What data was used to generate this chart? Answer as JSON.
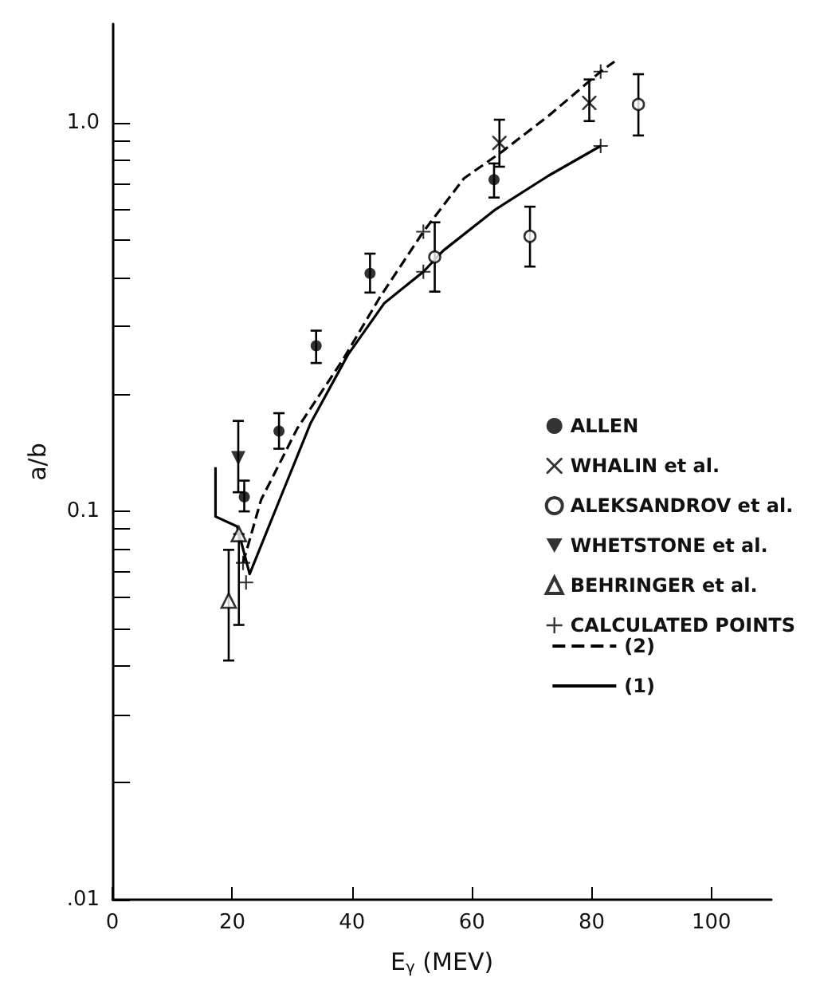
{
  "chart_data": {
    "type": "scatter",
    "xlabel": "E$_{γ}$ (MEV)",
    "ylabel": "a/b",
    "log": "y",
    "xlim": [
      0,
      110
    ],
    "ylim": [
      0.01,
      1.8
    ],
    "xticks": [
      0,
      20,
      40,
      60,
      80,
      100
    ],
    "yticks": [
      {
        "value": 0.01,
        "label": ".01"
      },
      {
        "value": 0.02,
        "label": null
      },
      {
        "value": 0.03,
        "label": null
      },
      {
        "value": 0.04,
        "label": null
      },
      {
        "value": 0.05,
        "label": null
      },
      {
        "value": 0.06,
        "label": null
      },
      {
        "value": 0.07,
        "label": null
      },
      {
        "value": 0.08,
        "label": null
      },
      {
        "value": 0.09,
        "label": null
      },
      {
        "value": 0.1,
        "label": "0.1"
      },
      {
        "value": 0.2,
        "label": null
      },
      {
        "value": 0.3,
        "label": null
      },
      {
        "value": 0.4,
        "label": null
      },
      {
        "value": 0.5,
        "label": null
      },
      {
        "value": 0.6,
        "label": null
      },
      {
        "value": 0.7,
        "label": null
      },
      {
        "value": 0.8,
        "label": null
      },
      {
        "value": 0.9,
        "label": null
      },
      {
        "value": 1,
        "label": "1.0"
      }
    ],
    "grid": false,
    "legend": "right",
    "series": [
      {
        "name": "ALLEN",
        "marker": "circle",
        "color": "#000000",
        "x": [
          22.0,
          27.8,
          34.0,
          43.0,
          63.7
        ],
        "values": [
          0.109,
          0.161,
          0.267,
          0.41,
          0.715
        ],
        "errors": [
          [
            0.1,
            0.12
          ],
          [
            0.145,
            0.179
          ],
          [
            0.241,
            0.292
          ],
          [
            0.366,
            0.461
          ],
          [
            0.643,
            0.787
          ]
        ]
      },
      {
        "name": "WHALIN et al.",
        "marker": "x",
        "color": "#000000",
        "x": [
          64.6,
          79.6
        ],
        "values": [
          0.889,
          1.127
        ],
        "errors": [
          [
            0.772,
            1.02
          ],
          [
            1.012,
            1.295
          ]
        ]
      },
      {
        "name": "ALEKSANDROV et al.",
        "marker": "circle-open",
        "color": "#000000",
        "x": [
          53.8,
          69.7,
          87.8
        ],
        "values": [
          0.452,
          0.511,
          1.117
        ],
        "errors": [
          [
            0.368,
            0.555
          ],
          [
            0.427,
            0.609
          ],
          [
            0.929,
            1.336
          ]
        ]
      },
      {
        "name": "WHETSTONE et al.",
        "marker": "triangle-down",
        "color": "#000000",
        "x": [
          21.0
        ],
        "values": [
          0.137
        ],
        "errors": [
          [
            0.112,
            0.171
          ]
        ]
      },
      {
        "name": "BEHRINGER et al.",
        "marker": "triangle-open",
        "color": "#000000",
        "x": [
          21.1,
          19.4
        ],
        "values": [
          0.0874,
          0.0589
        ],
        "errors": [
          [
            0.051,
            0.0874
          ],
          [
            0.0413,
            0.0796
          ]
        ]
      },
      {
        "name": "CALCULATED POINTS",
        "marker": "cross",
        "color": "#000000",
        "x": [
          21.8,
          22.3,
          51.9,
          51.9,
          81.5,
          81.5
        ],
        "values": [
          0.0737,
          0.0656,
          0.414,
          0.525,
          0.873,
          1.357
        ]
      },
      {
        "name": "(2)",
        "type": "line",
        "line_style": "dashed",
        "color": "#000000",
        "x": [
          21.8,
          24.8,
          30.9,
          38.4,
          44.6,
          51.9,
          58.7,
          64.9,
          72.8,
          81.5,
          83.8
        ],
        "values": [
          0.0737,
          0.107,
          0.164,
          0.245,
          0.355,
          0.525,
          0.721,
          0.841,
          1.044,
          1.357,
          1.44
        ]
      },
      {
        "name": "(1)",
        "type": "line",
        "line_style": "solid",
        "color": "#000000",
        "x": [
          17.2,
          17.2,
          20.8,
          22.9,
          28.2,
          33.1,
          39.3,
          45.4,
          51.9,
          55.2,
          64.0,
          72.8,
          81.5
        ],
        "values": [
          0.13,
          0.097,
          0.0915,
          0.069,
          0.11,
          0.169,
          0.253,
          0.344,
          0.414,
          0.469,
          0.6,
          0.732,
          0.873
        ]
      }
    ]
  }
}
